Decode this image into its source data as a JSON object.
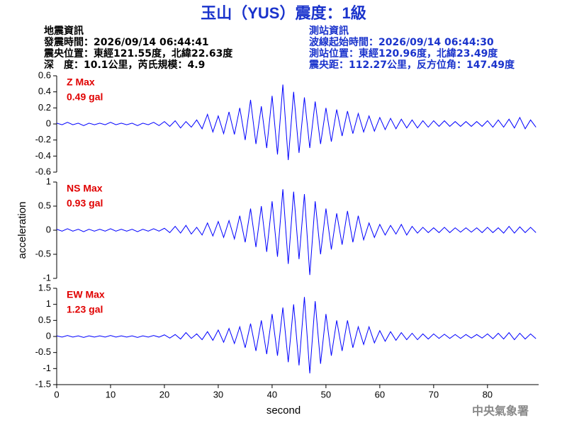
{
  "header": {
    "title": "玉山（YUS）震度：1級",
    "left": [
      "地震資訊",
      "發震時間：2026/09/14 06:44:41",
      "震央位置：東經121.55度，北緯22.63度",
      "深　度：10.1公里，芮氏規模：4.9"
    ],
    "right": [
      "測站資訊",
      "波線起始時間：2026/09/14 06:44:30",
      "測站位置：東經120.96度，北緯23.49度",
      "震央距：112.27公里，反方位角：147.49度"
    ]
  },
  "footer": "中央氣象署",
  "chart_data": [
    {
      "type": "line",
      "annotations": [
        "Z Max",
        "0.49 gal"
      ],
      "xlim": [
        0,
        89.5
      ],
      "ylim": [
        -0.6,
        0.6
      ],
      "yticks": [
        0.6,
        0.4,
        0.2,
        0,
        -0.2,
        -0.4,
        -0.6
      ],
      "x": [
        0,
        1,
        2,
        3,
        4,
        5,
        6,
        7,
        8,
        9,
        10,
        11,
        12,
        13,
        14,
        15,
        16,
        17,
        18,
        19,
        20,
        21,
        22,
        23,
        24,
        25,
        26,
        27,
        28,
        29,
        30,
        31,
        32,
        33,
        34,
        35,
        36,
        37,
        38,
        39,
        40,
        41,
        42,
        43,
        44,
        45,
        46,
        47,
        48,
        49,
        50,
        51,
        52,
        53,
        54,
        55,
        56,
        57,
        58,
        59,
        60,
        61,
        62,
        63,
        64,
        65,
        66,
        67,
        68,
        69,
        70,
        71,
        72,
        73,
        74,
        75,
        76,
        77,
        78,
        79,
        80,
        81,
        82,
        83,
        84,
        85,
        86,
        87,
        88,
        89
      ],
      "series": [
        {
          "name": "Z",
          "color": "#0000ff",
          "values": [
            0.01,
            -0.01,
            0.02,
            -0.01,
            0.01,
            -0.02,
            0.01,
            -0.01,
            0.01,
            -0.01,
            0.02,
            -0.01,
            0.01,
            -0.01,
            0.01,
            -0.02,
            0.01,
            -0.01,
            0.02,
            -0.02,
            0.03,
            -0.03,
            0.04,
            -0.05,
            0.03,
            -0.04,
            0.05,
            -0.06,
            0.12,
            -0.1,
            0.1,
            -0.12,
            0.15,
            -0.13,
            0.2,
            -0.2,
            0.3,
            -0.25,
            0.22,
            -0.3,
            0.35,
            -0.38,
            0.49,
            -0.45,
            0.4,
            -0.36,
            0.33,
            -0.3,
            0.28,
            -0.25,
            0.2,
            -0.22,
            0.18,
            -0.15,
            0.16,
            -0.12,
            0.13,
            -0.1,
            0.1,
            -0.09,
            0.08,
            -0.07,
            0.07,
            -0.06,
            0.06,
            -0.05,
            0.05,
            -0.05,
            0.04,
            -0.04,
            0.04,
            -0.03,
            0.04,
            -0.03,
            0.03,
            -0.03,
            0.03,
            -0.03,
            0.03,
            -0.03,
            0.04,
            -0.04,
            0.05,
            -0.04,
            0.06,
            -0.05,
            0.08,
            -0.06,
            0.05,
            -0.04
          ]
        }
      ]
    },
    {
      "type": "line",
      "annotations": [
        "NS Max",
        "0.93 gal"
      ],
      "ylabel": "acceleration",
      "xlim": [
        0,
        89.5
      ],
      "ylim": [
        -1,
        1
      ],
      "yticks": [
        1,
        0.5,
        0,
        -0.5,
        -1
      ],
      "x": [
        0,
        1,
        2,
        3,
        4,
        5,
        6,
        7,
        8,
        9,
        10,
        11,
        12,
        13,
        14,
        15,
        16,
        17,
        18,
        19,
        20,
        21,
        22,
        23,
        24,
        25,
        26,
        27,
        28,
        29,
        30,
        31,
        32,
        33,
        34,
        35,
        36,
        37,
        38,
        39,
        40,
        41,
        42,
        43,
        44,
        45,
        46,
        47,
        48,
        49,
        50,
        51,
        52,
        53,
        54,
        55,
        56,
        57,
        58,
        59,
        60,
        61,
        62,
        63,
        64,
        65,
        66,
        67,
        68,
        69,
        70,
        71,
        72,
        73,
        74,
        75,
        76,
        77,
        78,
        79,
        80,
        81,
        82,
        83,
        84,
        85,
        86,
        87,
        88,
        89
      ],
      "series": [
        {
          "name": "NS",
          "color": "#0000ff",
          "values": [
            0.02,
            -0.02,
            0.03,
            -0.02,
            0.02,
            -0.03,
            0.02,
            -0.02,
            0.02,
            -0.02,
            0.03,
            -0.02,
            0.02,
            -0.02,
            0.02,
            -0.03,
            0.02,
            -0.02,
            0.03,
            -0.02,
            0.04,
            -0.05,
            0.08,
            -0.06,
            0.1,
            -0.08,
            0.06,
            -0.1,
            0.15,
            -0.12,
            0.18,
            -0.15,
            0.2,
            -0.18,
            0.3,
            -0.25,
            0.45,
            -0.35,
            0.5,
            -0.45,
            0.6,
            -0.55,
            0.85,
            -0.7,
            0.8,
            -0.6,
            0.75,
            -0.93,
            0.6,
            -0.5,
            0.45,
            -0.4,
            0.35,
            -0.3,
            0.4,
            -0.25,
            0.3,
            -0.2,
            0.15,
            -0.15,
            0.12,
            -0.1,
            0.1,
            -0.08,
            0.12,
            -0.1,
            0.08,
            -0.06,
            0.06,
            -0.05,
            0.05,
            -0.05,
            0.06,
            -0.05,
            0.05,
            -0.04,
            0.05,
            -0.04,
            0.05,
            -0.05,
            0.06,
            -0.05,
            0.05,
            -0.06,
            0.08,
            -0.06,
            0.07,
            -0.05,
            0.06,
            -0.05
          ]
        }
      ]
    },
    {
      "type": "line",
      "annotations": [
        "EW Max",
        "1.23 gal"
      ],
      "xlabel": "second",
      "xlim": [
        0,
        89.5
      ],
      "xticks": [
        0,
        10,
        20,
        30,
        40,
        50,
        60,
        70,
        80
      ],
      "ylim": [
        -1.5,
        1.5
      ],
      "yticks": [
        1.5,
        1,
        0.5,
        0,
        -0.5,
        -1,
        -1.5
      ],
      "x": [
        0,
        1,
        2,
        3,
        4,
        5,
        6,
        7,
        8,
        9,
        10,
        11,
        12,
        13,
        14,
        15,
        16,
        17,
        18,
        19,
        20,
        21,
        22,
        23,
        24,
        25,
        26,
        27,
        28,
        29,
        30,
        31,
        32,
        33,
        34,
        35,
        36,
        37,
        38,
        39,
        40,
        41,
        42,
        43,
        44,
        45,
        46,
        47,
        48,
        49,
        50,
        51,
        52,
        53,
        54,
        55,
        56,
        57,
        58,
        59,
        60,
        61,
        62,
        63,
        64,
        65,
        66,
        67,
        68,
        69,
        70,
        71,
        72,
        73,
        74,
        75,
        76,
        77,
        78,
        79,
        80,
        81,
        82,
        83,
        84,
        85,
        86,
        87,
        88,
        89
      ],
      "series": [
        {
          "name": "EW",
          "color": "#0000ff",
          "values": [
            0.02,
            -0.02,
            0.03,
            -0.02,
            0.02,
            -0.03,
            0.02,
            -0.02,
            0.02,
            -0.02,
            0.03,
            -0.02,
            0.02,
            -0.02,
            0.02,
            -0.03,
            0.02,
            -0.02,
            0.03,
            -0.02,
            0.05,
            -0.05,
            0.06,
            -0.08,
            0.12,
            -0.06,
            0.08,
            -0.1,
            0.15,
            -0.12,
            0.2,
            -0.18,
            0.25,
            -0.22,
            0.3,
            -0.35,
            0.4,
            -0.45,
            0.5,
            -0.55,
            0.7,
            -0.6,
            0.9,
            -0.8,
            1.0,
            -0.9,
            1.23,
            -1.15,
            1.1,
            -0.85,
            0.7,
            -0.6,
            0.5,
            -0.45,
            0.5,
            -0.35,
            0.3,
            -0.25,
            0.3,
            -0.2,
            0.18,
            -0.15,
            0.15,
            -0.12,
            0.12,
            -0.1,
            0.1,
            -0.1,
            0.08,
            -0.08,
            0.08,
            -0.06,
            0.07,
            -0.06,
            0.06,
            -0.06,
            0.06,
            -0.05,
            0.06,
            -0.05,
            0.08,
            -0.07,
            0.1,
            -0.08,
            0.12,
            -0.1,
            0.1,
            -0.08,
            0.08,
            -0.07
          ]
        }
      ]
    }
  ]
}
